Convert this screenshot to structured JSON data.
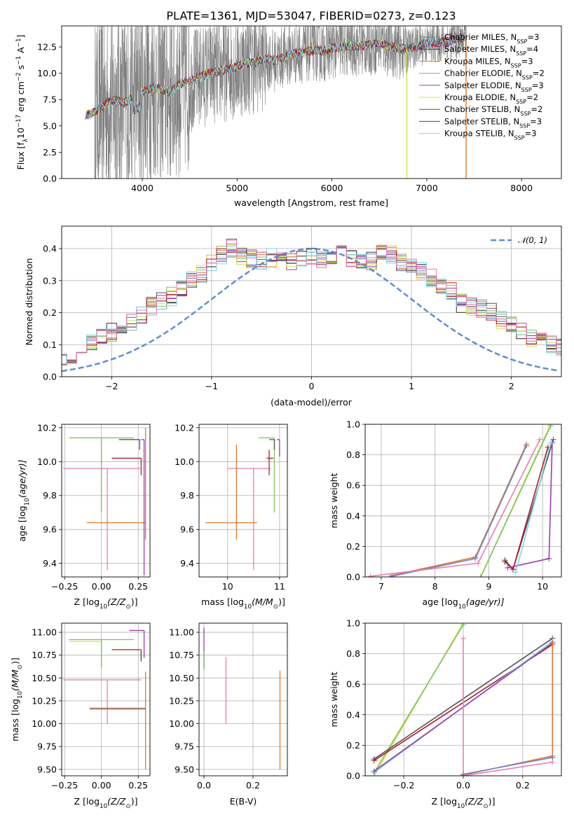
{
  "title": "PLATE=1361, MJD=53047, FIBERID=0273, z=0.123",
  "colors": {
    "Chabrier MILES": "#6a88c8",
    "Salpeter MILES": "#333333",
    "Kroupa MILES": "#e07a2a",
    "Chabrier ELODIE": "#7cc35a",
    "Salpeter ELODIE": "#9a3ab0",
    "Kroupa ELODIE": "#d8e050",
    "Chabrier STELIB": "#555555",
    "Salpeter STELIB": "#b01c2a",
    "Kroupa STELIB": "#7fd8e6",
    "pink": "#e87cb8",
    "data": "#808080"
  },
  "chart_data": [
    {
      "id": "spectrum",
      "type": "line",
      "title": "PLATE=1361, MJD=53047, FIBERID=0273, z=0.123",
      "xlabel": "wavelength [Angstrom, rest frame]",
      "ylabel": "Flux [f$_\\lambda$10$^{-17}$ erg cm$^{-2}$ s$^{-1}$ A$^{-1}$]",
      "ylabel_parts": [
        "Flux [f",
        "λ",
        "10",
        "−17",
        " erg cm",
        "−2",
        " s",
        "−1",
        " A",
        "−1",
        "]"
      ],
      "xlim": [
        3150,
        8420
      ],
      "ylim": [
        0,
        14.5
      ],
      "xticks": [
        4000,
        5000,
        6000,
        7000,
        8000
      ],
      "yticks": [
        "0.0",
        "2.5",
        "5.0",
        "7.5",
        "10.0",
        "12.5"
      ],
      "legend_position": "upper-right",
      "legend": [
        {
          "name": "Chabrier MILES",
          "sub": "SSP",
          "n": "3"
        },
        {
          "name": "Salpeter MILES",
          "sub": "SSP",
          "n": "4"
        },
        {
          "name": "Kroupa MILES",
          "sub": "SSP",
          "n": "3"
        },
        {
          "name": "Chabrier ELODIE",
          "sub": "SSP",
          "n": "2"
        },
        {
          "name": "Salpeter ELODIE",
          "sub": "SSP",
          "n": "3"
        },
        {
          "name": "Kroupa ELODIE",
          "sub": "SSP",
          "n": "2"
        },
        {
          "name": "Chabrier STELIB",
          "sub": "SSP",
          "n": "2"
        },
        {
          "name": "Salpeter STELIB",
          "sub": "SSP",
          "n": "3"
        },
        {
          "name": "Kroupa STELIB",
          "sub": "SSP",
          "n": "3"
        }
      ],
      "model_continuum": {
        "x": [
          3400,
          3500,
          3600,
          3700,
          3800,
          3900,
          4000,
          4100,
          4200,
          4300,
          4400,
          4500,
          4600,
          4700,
          4800,
          4900,
          5000,
          5100,
          5200,
          5300,
          5400,
          5500,
          5600,
          5700,
          5800,
          5900,
          6000,
          6100,
          6200,
          6300,
          6400,
          6500,
          6600,
          6700,
          6800,
          6900,
          7000,
          7100,
          7200,
          7300,
          7400
        ],
        "y": [
          6.0,
          6.3,
          7.0,
          7.5,
          7.2,
          7.6,
          8.2,
          8.6,
          8.5,
          8.2,
          9.0,
          9.3,
          9.6,
          10.0,
          10.2,
          10.4,
          10.6,
          10.9,
          11.1,
          11.4,
          11.2,
          11.6,
          11.9,
          12.0,
          12.2,
          12.1,
          12.4,
          12.5,
          12.6,
          12.6,
          12.7,
          12.9,
          12.6,
          12.4,
          12.3,
          12.6,
          12.8,
          12.9,
          13.0,
          13.2,
          13.5
        ]
      },
      "data_range": [
        3500,
        7420
      ]
    },
    {
      "id": "residuals",
      "type": "bar",
      "xlabel": "(data-model)/error",
      "ylabel": "Normed distribution",
      "xlim": [
        -2.5,
        2.5
      ],
      "ylim": [
        0,
        0.47
      ],
      "xticks": [
        "−2",
        "−1",
        "0",
        "1",
        "2"
      ],
      "xtick_values": [
        -2,
        -1,
        0,
        1,
        2
      ],
      "yticks": [
        "0.0",
        "0.1",
        "0.2",
        "0.3",
        "0.4"
      ],
      "ytick_values": [
        0,
        0.1,
        0.2,
        0.3,
        0.4
      ],
      "bin_width": 0.1,
      "legend": "𝒩(0, 1)",
      "legend_position": "upper-right",
      "gaussian": {
        "mu": 0,
        "sigma": 1
      },
      "hist_base": [
        0.02,
        0.02,
        0.03,
        0.04,
        0.05,
        0.05,
        0.06,
        0.07,
        0.09,
        0.11,
        0.12,
        0.14,
        0.15,
        0.17,
        0.19,
        0.22,
        0.24,
        0.25,
        0.27,
        0.3,
        0.32,
        0.35,
        0.38,
        0.4,
        0.38,
        0.37,
        0.36,
        0.37,
        0.38,
        0.36,
        0.37,
        0.38,
        0.36,
        0.37,
        0.38,
        0.37,
        0.36,
        0.36,
        0.39,
        0.38,
        0.36,
        0.34,
        0.33,
        0.31,
        0.29,
        0.27,
        0.23,
        0.22,
        0.21,
        0.2,
        0.18,
        0.16,
        0.14,
        0.12,
        0.11,
        0.1,
        0.09,
        0.07,
        0.06,
        0.05,
        0.05,
        0.04,
        0.03,
        0.03,
        0.02
      ]
    },
    {
      "id": "age-vs-Z",
      "type": "scatter",
      "xlabel_parts": [
        "Z [log",
        "10",
        "(Z/Z",
        "⊙",
        ")]"
      ],
      "ylabel_parts": [
        "age  [log",
        "10",
        "(age/yr)]"
      ],
      "xlim": [
        -0.27,
        0.33
      ],
      "ylim": [
        9.32,
        10.22
      ],
      "xticks": [
        "−0.25",
        "0.00",
        "0.25"
      ],
      "xtick_values": [
        -0.25,
        0,
        0.25
      ],
      "yticks": [
        "9.4",
        "9.6",
        "9.8",
        "10.0",
        "10.2"
      ],
      "ytick_values": [
        9.4,
        9.6,
        9.8,
        10.0,
        10.2
      ],
      "points": [
        {
          "c": "Kroupa ELODIE",
          "x": 0.0,
          "y": 10.14,
          "xerr": [
            0.22,
            0.0
          ],
          "yerr": [
            0.44,
            0.0
          ]
        },
        {
          "c": "Chabrier ELODIE",
          "x": 0.0,
          "y": 10.14,
          "xerr": [
            0.22,
            0.22
          ],
          "yerr": [
            0.44,
            0.0
          ]
        },
        {
          "c": "Chabrier STELIB",
          "x": 0.26,
          "y": 10.13,
          "xerr": [
            0.14,
            0.0
          ],
          "yerr": [
            0.06,
            0.0
          ]
        },
        {
          "c": "Salpeter STELIB",
          "x": 0.27,
          "y": 10.02,
          "xerr": [
            0.2,
            0.0
          ],
          "yerr": [
            0.1,
            0.0
          ]
        },
        {
          "c": "pink",
          "x": 0.04,
          "y": 9.96,
          "xerr": [
            0.3,
            0.23
          ],
          "yerr": [
            0.6,
            0.0
          ]
        },
        {
          "c": "Kroupa MILES",
          "x": 0.18,
          "y": 9.64,
          "xerr": [
            0.28,
            0.12
          ],
          "yerr": [
            0.0,
            0.0
          ]
        },
        {
          "c": "Salpeter ELODIE",
          "x": 0.29,
          "y": 10.13,
          "xerr": [
            0.02,
            0.0
          ],
          "yerr": [
            0.8,
            0.0
          ]
        },
        {
          "c": "Kroupa MILES",
          "x": 0.3,
          "y": 9.9,
          "xerr": [
            0.0,
            0.0
          ],
          "yerr": [
            0.36,
            0.3
          ]
        }
      ]
    },
    {
      "id": "age-vs-mass",
      "type": "scatter",
      "xlabel_parts": [
        "mass [log",
        "10",
        "(M/M",
        "⊙",
        ")]"
      ],
      "xlim": [
        9.45,
        11.15
      ],
      "ylim": [
        9.32,
        10.22
      ],
      "xticks": [
        "10",
        "11"
      ],
      "xtick_values": [
        10,
        11
      ],
      "yticks": [
        "9.4",
        "9.6",
        "9.8",
        "10.0",
        "10.2"
      ],
      "ytick_values": [
        9.4,
        9.6,
        9.8,
        10.0,
        10.2
      ],
      "points": [
        {
          "c": "Kroupa MILES",
          "x": 10.17,
          "y": 9.64,
          "xerr": [
            0.6,
            0.4
          ],
          "yerr": [
            0.1,
            0.46
          ]
        },
        {
          "c": "pink",
          "x": 10.5,
          "y": 9.96,
          "xerr": [
            0.5,
            0.3
          ],
          "yerr": [
            0.6,
            0.0
          ]
        },
        {
          "c": "Chabrier ELODIE",
          "x": 10.9,
          "y": 10.14,
          "xerr": [
            0.3,
            0.0
          ],
          "yerr": [
            0.44,
            0.0
          ]
        },
        {
          "c": "Salpeter STELIB",
          "x": 10.8,
          "y": 10.02,
          "xerr": [
            0.05,
            0.08
          ],
          "yerr": [
            0.1,
            0.05
          ]
        },
        {
          "c": "Salpeter ELODIE",
          "x": 11.0,
          "y": 10.13,
          "xerr": [
            0.05,
            0.0
          ],
          "yerr": [
            0.1,
            0.0
          ]
        },
        {
          "c": "Chabrier STELIB",
          "x": 10.9,
          "y": 10.13,
          "xerr": [
            0.1,
            0.0
          ],
          "yerr": [
            0.06,
            0.0
          ]
        }
      ]
    },
    {
      "id": "weight-vs-age",
      "type": "line",
      "xlabel_parts": [
        "age  [log",
        "10",
        "(age/yr)]"
      ],
      "ylabel": "mass weight",
      "xlim": [
        6.7,
        10.35
      ],
      "ylim": [
        0,
        1
      ],
      "xticks": [
        "7",
        "8",
        "9",
        "10"
      ],
      "xtick_values": [
        7,
        8,
        9,
        10
      ],
      "yticks": [
        "0.0",
        "0.2",
        "0.4",
        "0.6",
        "0.8",
        "1.0"
      ],
      "ytick_values": [
        0,
        0.2,
        0.4,
        0.6,
        0.8,
        1.0
      ],
      "series": [
        {
          "c": "Kroupa MILES",
          "x": [
            7.2,
            8.75,
            9.7
          ],
          "y": [
            0.01,
            0.13,
            0.87
          ]
        },
        {
          "c": "Chabrier MILES",
          "x": [
            7.2,
            8.75,
            9.7
          ],
          "y": [
            0.005,
            0.12,
            0.86
          ]
        },
        {
          "c": "pink",
          "x": [
            6.8,
            8.8,
            9.95
          ],
          "y": [
            0.005,
            0.09,
            0.9
          ]
        },
        {
          "c": "Kroupa ELODIE",
          "x": [
            8.85,
            10.15
          ],
          "y": [
            0.0,
            1.0
          ]
        },
        {
          "c": "Chabrier ELODIE",
          "x": [
            8.85,
            10.15
          ],
          "y": [
            0.0,
            0.99
          ]
        },
        {
          "c": "Chabrier STELIB",
          "x": [
            9.3,
            9.45,
            10.2
          ],
          "y": [
            0.11,
            0.05,
            0.9
          ]
        },
        {
          "c": "Salpeter STELIB",
          "x": [
            9.3,
            9.45,
            10.1
          ],
          "y": [
            0.1,
            0.05,
            0.85
          ]
        },
        {
          "c": "Salpeter ELODIE",
          "x": [
            9.35,
            10.12,
            10.18
          ],
          "y": [
            0.06,
            0.12,
            0.88
          ]
        },
        {
          "c": "Kroupa STELIB",
          "x": [
            9.5,
            10.15
          ],
          "y": [
            0.03,
            0.88
          ]
        }
      ]
    },
    {
      "id": "mass-vs-Z",
      "type": "scatter",
      "xlabel_parts": [
        "Z [log",
        "10",
        "(Z/Z",
        "⊙",
        ")]"
      ],
      "ylabel_parts": [
        "mass [log",
        "10",
        "(M/M",
        "⊙",
        ")]"
      ],
      "xlim": [
        -0.27,
        0.33
      ],
      "ylim": [
        9.43,
        11.1
      ],
      "xticks": [
        "−0.25",
        "0.00",
        "0.25"
      ],
      "xtick_values": [
        -0.25,
        0,
        0.25
      ],
      "yticks": [
        "9.50",
        "9.75",
        "10.00",
        "10.25",
        "10.50",
        "10.75",
        "11.00"
      ],
      "ytick_values": [
        9.5,
        9.75,
        10.0,
        10.25,
        10.5,
        10.75,
        11.0
      ],
      "points": [
        {
          "c": "Kroupa ELODIE",
          "x": 0.0,
          "y": 10.9,
          "xerr": [
            0.22,
            0.0
          ],
          "yerr": [
            0.3,
            0.0
          ]
        },
        {
          "c": "Chabrier ELODIE",
          "x": 0.0,
          "y": 10.92,
          "xerr": [
            0.22,
            0.22
          ],
          "yerr": [
            0.3,
            0.0
          ]
        },
        {
          "c": "Salpeter ELODIE",
          "x": 0.29,
          "y": 11.02,
          "xerr": [
            0.1,
            0.0
          ],
          "yerr": [
            0.3,
            0.0
          ]
        },
        {
          "c": "Salpeter STELIB",
          "x": 0.27,
          "y": 10.81,
          "xerr": [
            0.2,
            0.0
          ],
          "yerr": [
            0.1,
            0.0
          ]
        },
        {
          "c": "Chabrier STELIB",
          "x": 0.27,
          "y": 10.78,
          "xerr": [
            0.0,
            0.0
          ],
          "yerr": [
            0.1,
            0.0
          ]
        },
        {
          "c": "pink",
          "x": 0.04,
          "y": 10.48,
          "xerr": [
            0.3,
            0.23
          ],
          "yerr": [
            0.48,
            0.0
          ]
        },
        {
          "c": "Kroupa MILES",
          "x": 0.3,
          "y": 10.17,
          "xerr": [
            0.38,
            0.0
          ],
          "yerr": [
            0.67,
            0.4
          ]
        },
        {
          "c": "Chabrier MILES",
          "x": 0.3,
          "y": 10.16,
          "xerr": [
            0.38,
            0.0
          ],
          "yerr": [
            0.0,
            0.0
          ]
        }
      ]
    },
    {
      "id": "mass-vs-EBV",
      "type": "scatter",
      "xlabel": "E(B-V)",
      "xlim": [
        -0.02,
        0.34
      ],
      "ylim": [
        9.43,
        11.1
      ],
      "xticks": [
        "0.0",
        "0.2"
      ],
      "xtick_values": [
        0,
        0.2
      ],
      "yticks": [
        "9.50",
        "9.75",
        "10.00",
        "10.25",
        "10.50",
        "10.75",
        "11.00"
      ],
      "ytick_values": [
        9.5,
        9.75,
        10.0,
        10.25,
        10.5,
        10.75,
        11.0
      ],
      "points": [
        {
          "c": "Salpeter ELODIE",
          "x": 0.0,
          "y": 10.9,
          "xerr": [
            0,
            0
          ],
          "yerr": [
            0.3,
            0.15
          ]
        },
        {
          "c": "Chabrier ELODIE",
          "x": 0.0,
          "y": 10.7,
          "xerr": [
            0,
            0
          ],
          "yerr": [
            0.1,
            0.1
          ]
        },
        {
          "c": "pink",
          "x": 0.09,
          "y": 10.35,
          "xerr": [
            0,
            0
          ],
          "yerr": [
            0.35,
            0.38
          ]
        },
        {
          "c": "Kroupa MILES",
          "x": 0.31,
          "y": 10.0,
          "xerr": [
            0,
            0
          ],
          "yerr": [
            0.5,
            0.58
          ]
        }
      ]
    },
    {
      "id": "weight-vs-Z",
      "type": "line",
      "xlabel_parts": [
        "Z [log",
        "10",
        "(Z/Z",
        "⊙",
        ")]"
      ],
      "ylabel": "mass weight",
      "xlim": [
        -0.33,
        0.33
      ],
      "ylim": [
        0,
        1
      ],
      "xticks": [
        "−0.2",
        "0.0",
        "0.2"
      ],
      "xtick_values": [
        -0.2,
        0,
        0.2
      ],
      "yticks": [
        "0.0",
        "0.2",
        "0.4",
        "0.6",
        "0.8",
        "1.0"
      ],
      "ytick_values": [
        0,
        0.2,
        0.4,
        0.6,
        0.8,
        1.0
      ],
      "series": [
        {
          "c": "Kroupa ELODIE",
          "x": [
            -0.3,
            0.0
          ],
          "y": [
            0.0,
            1.0
          ]
        },
        {
          "c": "Chabrier ELODIE",
          "x": [
            -0.3,
            0.0
          ],
          "y": [
            0.02,
            0.99
          ]
        },
        {
          "c": "Chabrier STELIB",
          "x": [
            -0.3,
            0.3
          ],
          "y": [
            0.11,
            0.9
          ]
        },
        {
          "c": "Salpeter STELIB",
          "x": [
            -0.3,
            0.3
          ],
          "y": [
            0.1,
            0.86
          ]
        },
        {
          "c": "Kroupa STELIB",
          "x": [
            -0.3,
            0.3
          ],
          "y": [
            0.02,
            0.88
          ]
        },
        {
          "c": "Salpeter ELODIE",
          "x": [
            -0.3,
            0.3,
            0.3
          ],
          "y": [
            0.03,
            0.87,
            0.12
          ]
        },
        {
          "c": "pink",
          "x": [
            0.0,
            0.0,
            0.3
          ],
          "y": [
            0.9,
            0.0,
            0.09
          ]
        },
        {
          "c": "Kroupa MILES",
          "x": [
            0.0,
            0.3,
            0.3
          ],
          "y": [
            0.005,
            0.13,
            0.86
          ]
        },
        {
          "c": "Chabrier MILES",
          "x": [
            0.0,
            0.3
          ],
          "y": [
            0.01,
            0.12
          ]
        }
      ]
    }
  ]
}
